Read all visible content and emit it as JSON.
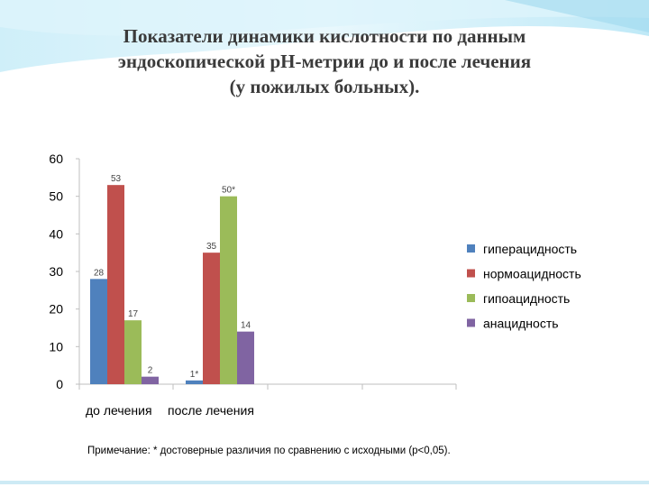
{
  "title_lines": [
    "Показатели динамики кислотности по данным",
    "эндоскопической рН-метрии до и после  лечения",
    "(у пожилых больных)."
  ],
  "note": "Примечание: * достоверные различия по сравнению с исходными (р<0,05).",
  "chart_data": {
    "type": "bar",
    "categories": [
      "до лечения",
      "после  лечения"
    ],
    "series": [
      {
        "name": "гиперацидность",
        "color": "#4f81bd",
        "values": [
          28,
          1
        ],
        "labels": [
          "28",
          "1*"
        ]
      },
      {
        "name": "нормоацидность",
        "color": "#c0504d",
        "values": [
          53,
          35
        ],
        "labels": [
          "53",
          "35"
        ]
      },
      {
        "name": "гипоацидность",
        "color": "#9bbb59",
        "values": [
          17,
          50
        ],
        "labels": [
          "17",
          "50*"
        ]
      },
      {
        "name": "анацидность",
        "color": "#8064a2",
        "values": [
          2,
          14
        ],
        "labels": [
          "2",
          "14"
        ]
      }
    ],
    "yticks": [
      "0",
      "10",
      "20",
      "30",
      "40",
      "50",
      "60"
    ],
    "ylim": [
      0,
      60
    ],
    "legend": "right",
    "grid": false
  }
}
